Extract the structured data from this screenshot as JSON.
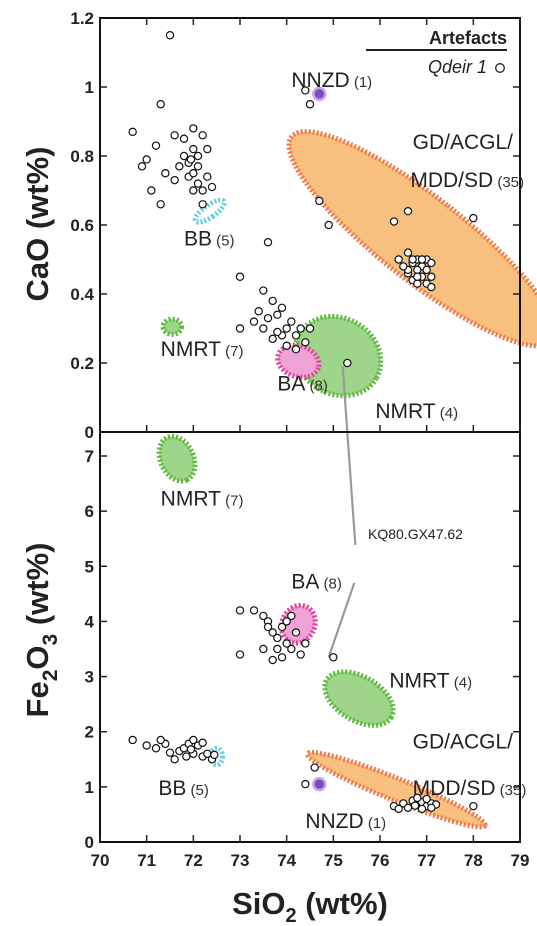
{
  "chart_data": {
    "type": "scatter",
    "x_axis": {
      "label": "SiO",
      "subscript": "2",
      "unit": " (wt%)",
      "ticks": [
        "70",
        "71",
        "72",
        "73",
        "74",
        "75",
        "76",
        "77",
        "78",
        "79"
      ],
      "range": [
        70,
        79
      ]
    },
    "legend": {
      "title": "Artefacts",
      "entry": "Qdeir 1",
      "position": "top-right"
    },
    "annotation": "KQ80.GX47.62",
    "colors": {
      "orange_fill": "#F8C07E",
      "orange_edge": "#F07850",
      "green_fill": "#9ED58A",
      "green_edge": "#5DBB3E",
      "pink_fill": "#EFA2D4",
      "pink_edge": "#E0429B",
      "cyan": "#5FCFE0",
      "purple": "#7B4FB8"
    },
    "panels": [
      {
        "id": "cao",
        "y_axis": {
          "label": "CaO (wt%)",
          "ticks": [
            "0",
            "0.2",
            "0.4",
            "0.6",
            "0.8",
            "1",
            "1.2"
          ],
          "range": [
            0,
            1.2
          ]
        },
        "fields": [
          {
            "name": "GD/ACGL/MDD/SD",
            "count": "(35)",
            "color": "orange",
            "cx": 76.9,
            "cy": 0.56,
            "rx": 0.9,
            "ry": 0.48,
            "angle": -52
          },
          {
            "name": "NMRT",
            "count": "(7)",
            "color": "green",
            "cx": 71.55,
            "cy": 0.305,
            "rx": 0.2,
            "ry": 0.022,
            "angle": 0
          },
          {
            "name": "NMRT",
            "count": "(4)",
            "color": "green",
            "cx": 75.1,
            "cy": 0.22,
            "rx": 0.95,
            "ry": 0.11,
            "angle": 30
          },
          {
            "name": "BA",
            "count": "(8)",
            "color": "pink",
            "cx": 74.25,
            "cy": 0.205,
            "rx": 0.45,
            "ry": 0.045,
            "angle": 18
          },
          {
            "name": "BB",
            "count": "(5)",
            "color": "cyan",
            "cx": 72.35,
            "cy": 0.64,
            "rx": 0.12,
            "ry": 0.05,
            "angle": 55
          }
        ],
        "labels": [
          {
            "text": "NNZD",
            "count": "(1)",
            "x": 74.1,
            "y": 1.0
          },
          {
            "text": "GD/ACGL/",
            "count": "",
            "x": 76.7,
            "y": 0.82
          },
          {
            "text": "MDD/SD",
            "count": "(35)",
            "x": 76.65,
            "y": 0.71
          },
          {
            "text": "BB",
            "count": "(5)",
            "x": 71.8,
            "y": 0.54
          },
          {
            "text": "NMRT",
            "count": "(7)",
            "x": 71.3,
            "y": 0.22
          },
          {
            "text": "BA",
            "count": "(8)",
            "x": 73.8,
            "y": 0.12
          },
          {
            "text": "NMRT",
            "count": "(4)",
            "x": 75.9,
            "y": 0.04
          }
        ],
        "special_points": [
          {
            "x": 74.7,
            "y": 0.98,
            "color": "purple"
          }
        ],
        "points": [
          [
            71.5,
            1.15
          ],
          [
            71.3,
            0.95
          ],
          [
            70.7,
            0.87
          ],
          [
            71.2,
            0.83
          ],
          [
            71.0,
            0.79
          ],
          [
            70.9,
            0.77
          ],
          [
            71.4,
            0.75
          ],
          [
            71.1,
            0.7
          ],
          [
            71.3,
            0.66
          ],
          [
            71.6,
            0.86
          ],
          [
            71.8,
            0.85
          ],
          [
            72.0,
            0.88
          ],
          [
            72.2,
            0.86
          ],
          [
            71.8,
            0.8
          ],
          [
            71.9,
            0.78
          ],
          [
            72.0,
            0.82
          ],
          [
            72.1,
            0.8
          ],
          [
            71.9,
            0.74
          ],
          [
            72.0,
            0.75
          ],
          [
            72.1,
            0.72
          ],
          [
            72.2,
            0.7
          ],
          [
            72.3,
            0.74
          ],
          [
            72.4,
            0.71
          ],
          [
            72.0,
            0.7
          ],
          [
            72.2,
            0.66
          ],
          [
            71.7,
            0.77
          ],
          [
            72.3,
            0.82
          ],
          [
            71.6,
            0.73
          ],
          [
            72.1,
            0.77
          ],
          [
            71.95,
            0.79
          ],
          [
            74.4,
            0.99
          ],
          [
            74.5,
            0.95
          ],
          [
            74.7,
            0.67
          ],
          [
            73.6,
            0.55
          ],
          [
            73.0,
            0.45
          ],
          [
            73.5,
            0.41
          ],
          [
            73.7,
            0.38
          ],
          [
            73.4,
            0.35
          ],
          [
            73.6,
            0.33
          ],
          [
            73.3,
            0.32
          ],
          [
            73.8,
            0.34
          ],
          [
            73.9,
            0.36
          ],
          [
            74.0,
            0.3
          ],
          [
            74.1,
            0.32
          ],
          [
            74.2,
            0.28
          ],
          [
            74.3,
            0.3
          ],
          [
            74.4,
            0.26
          ],
          [
            73.7,
            0.27
          ],
          [
            73.9,
            0.28
          ],
          [
            74.0,
            0.25
          ],
          [
            73.5,
            0.3
          ],
          [
            73.0,
            0.3
          ],
          [
            74.2,
            0.24
          ],
          [
            73.8,
            0.29
          ],
          [
            74.5,
            0.3
          ],
          [
            75.3,
            0.2
          ],
          [
            76.3,
            0.61
          ],
          [
            76.6,
            0.64
          ],
          [
            76.4,
            0.5
          ],
          [
            76.6,
            0.52
          ],
          [
            76.7,
            0.49
          ],
          [
            76.8,
            0.5
          ],
          [
            76.9,
            0.48
          ],
          [
            77.0,
            0.47
          ],
          [
            77.0,
            0.5
          ],
          [
            77.1,
            0.45
          ],
          [
            76.6,
            0.46
          ],
          [
            76.7,
            0.44
          ],
          [
            76.8,
            0.43
          ],
          [
            76.9,
            0.45
          ],
          [
            77.0,
            0.43
          ],
          [
            77.1,
            0.42
          ],
          [
            76.8,
            0.47
          ],
          [
            76.6,
            0.47
          ],
          [
            76.7,
            0.5
          ],
          [
            77.1,
            0.49
          ],
          [
            78.0,
            0.62
          ],
          [
            74.9,
            0.6
          ],
          [
            76.5,
            0.48
          ],
          [
            76.9,
            0.5
          ],
          [
            76.8,
            0.45
          ]
        ]
      },
      {
        "id": "fe2o3",
        "y_axis": {
          "label": "Fe",
          "subscript_a": "2",
          "label_mid": "O",
          "subscript_b": "3",
          "unit": " (wt%)",
          "ticks": [
            "0",
            "1",
            "2",
            "3",
            "4",
            "5",
            "6",
            "7"
          ],
          "range": [
            0,
            7.7
          ]
        },
        "fields": [
          {
            "name": "NMRT",
            "count": "(7)",
            "color": "green",
            "cx": 71.65,
            "cy": 6.95,
            "rx": 0.5,
            "ry": 0.3,
            "angle": 65
          },
          {
            "name": "BA",
            "count": "(8)",
            "color": "pink",
            "cx": 74.25,
            "cy": 3.95,
            "rx": 0.35,
            "ry": 0.35,
            "angle": 25
          },
          {
            "name": "NMRT",
            "count": "(4)",
            "color": "green",
            "cx": 75.55,
            "cy": 2.6,
            "rx": 0.8,
            "ry": 0.4,
            "angle": 30
          },
          {
            "name": "GD/ACGL/MDD/SD",
            "count": "(35)",
            "color": "orange",
            "cx": 76.35,
            "cy": 0.95,
            "rx": 2.05,
            "ry": 0.2,
            "angle": 22
          },
          {
            "name": "BB",
            "count": "(5)",
            "color": "cyan",
            "cx": 72.5,
            "cy": 1.55,
            "rx": 0.1,
            "ry": 0.15,
            "angle": 0
          }
        ],
        "labels": [
          {
            "text": "NMRT",
            "count": "(7)",
            "x": 71.3,
            "y": 6.1
          },
          {
            "text": "BA",
            "count": "(8)",
            "x": 74.1,
            "y": 4.6
          },
          {
            "text": "NMRT",
            "count": "(4)",
            "x": 76.2,
            "y": 2.8
          },
          {
            "text": "GD/ACGL/",
            "count": "",
            "x": 76.7,
            "y": 1.7
          },
          {
            "text": "MDD/SD",
            "count": "(35)",
            "x": 76.7,
            "y": 0.85
          },
          {
            "text": "BB",
            "count": "(5)",
            "x": 71.25,
            "y": 0.85
          },
          {
            "text": "NNZD",
            "count": "(1)",
            "x": 74.4,
            "y": 0.25
          }
        ],
        "special_points": [
          {
            "x": 74.7,
            "y": 1.05,
            "color": "purple"
          }
        ],
        "points": [
          [
            70.7,
            1.85
          ],
          [
            71.0,
            1.75
          ],
          [
            71.2,
            1.7
          ],
          [
            71.4,
            1.78
          ],
          [
            71.5,
            1.62
          ],
          [
            71.6,
            1.5
          ],
          [
            71.7,
            1.65
          ],
          [
            71.8,
            1.7
          ],
          [
            71.9,
            1.78
          ],
          [
            72.0,
            1.6
          ],
          [
            72.1,
            1.75
          ],
          [
            72.2,
            1.55
          ],
          [
            72.3,
            1.6
          ],
          [
            72.4,
            1.5
          ],
          [
            72.0,
            1.85
          ],
          [
            72.2,
            1.8
          ],
          [
            71.85,
            1.55
          ],
          [
            71.3,
            1.85
          ],
          [
            72.45,
            1.58
          ],
          [
            71.95,
            1.68
          ],
          [
            73.0,
            4.2
          ],
          [
            73.3,
            4.2
          ],
          [
            73.5,
            4.1
          ],
          [
            73.6,
            4.0
          ],
          [
            73.7,
            3.8
          ],
          [
            73.8,
            3.7
          ],
          [
            73.9,
            3.9
          ],
          [
            74.0,
            3.6
          ],
          [
            74.1,
            3.5
          ],
          [
            74.2,
            3.8
          ],
          [
            74.3,
            3.4
          ],
          [
            73.5,
            3.5
          ],
          [
            73.7,
            3.3
          ],
          [
            73.9,
            3.35
          ],
          [
            74.0,
            4.0
          ],
          [
            74.4,
            3.6
          ],
          [
            73.0,
            3.4
          ],
          [
            73.8,
            3.5
          ],
          [
            74.1,
            4.1
          ],
          [
            73.6,
            3.9
          ],
          [
            75.0,
            3.35
          ],
          [
            74.6,
            1.35
          ],
          [
            74.4,
            1.05
          ],
          [
            76.3,
            0.65
          ],
          [
            76.5,
            0.7
          ],
          [
            76.6,
            0.62
          ],
          [
            76.7,
            0.75
          ],
          [
            76.8,
            0.68
          ],
          [
            76.9,
            0.72
          ],
          [
            77.0,
            0.65
          ],
          [
            77.1,
            0.7
          ],
          [
            77.2,
            0.68
          ],
          [
            76.4,
            0.6
          ],
          [
            76.8,
            0.8
          ],
          [
            77.0,
            0.78
          ],
          [
            78.0,
            0.65
          ],
          [
            76.9,
            0.6
          ],
          [
            77.1,
            0.62
          ],
          [
            76.75,
            0.66
          ]
        ]
      }
    ]
  }
}
